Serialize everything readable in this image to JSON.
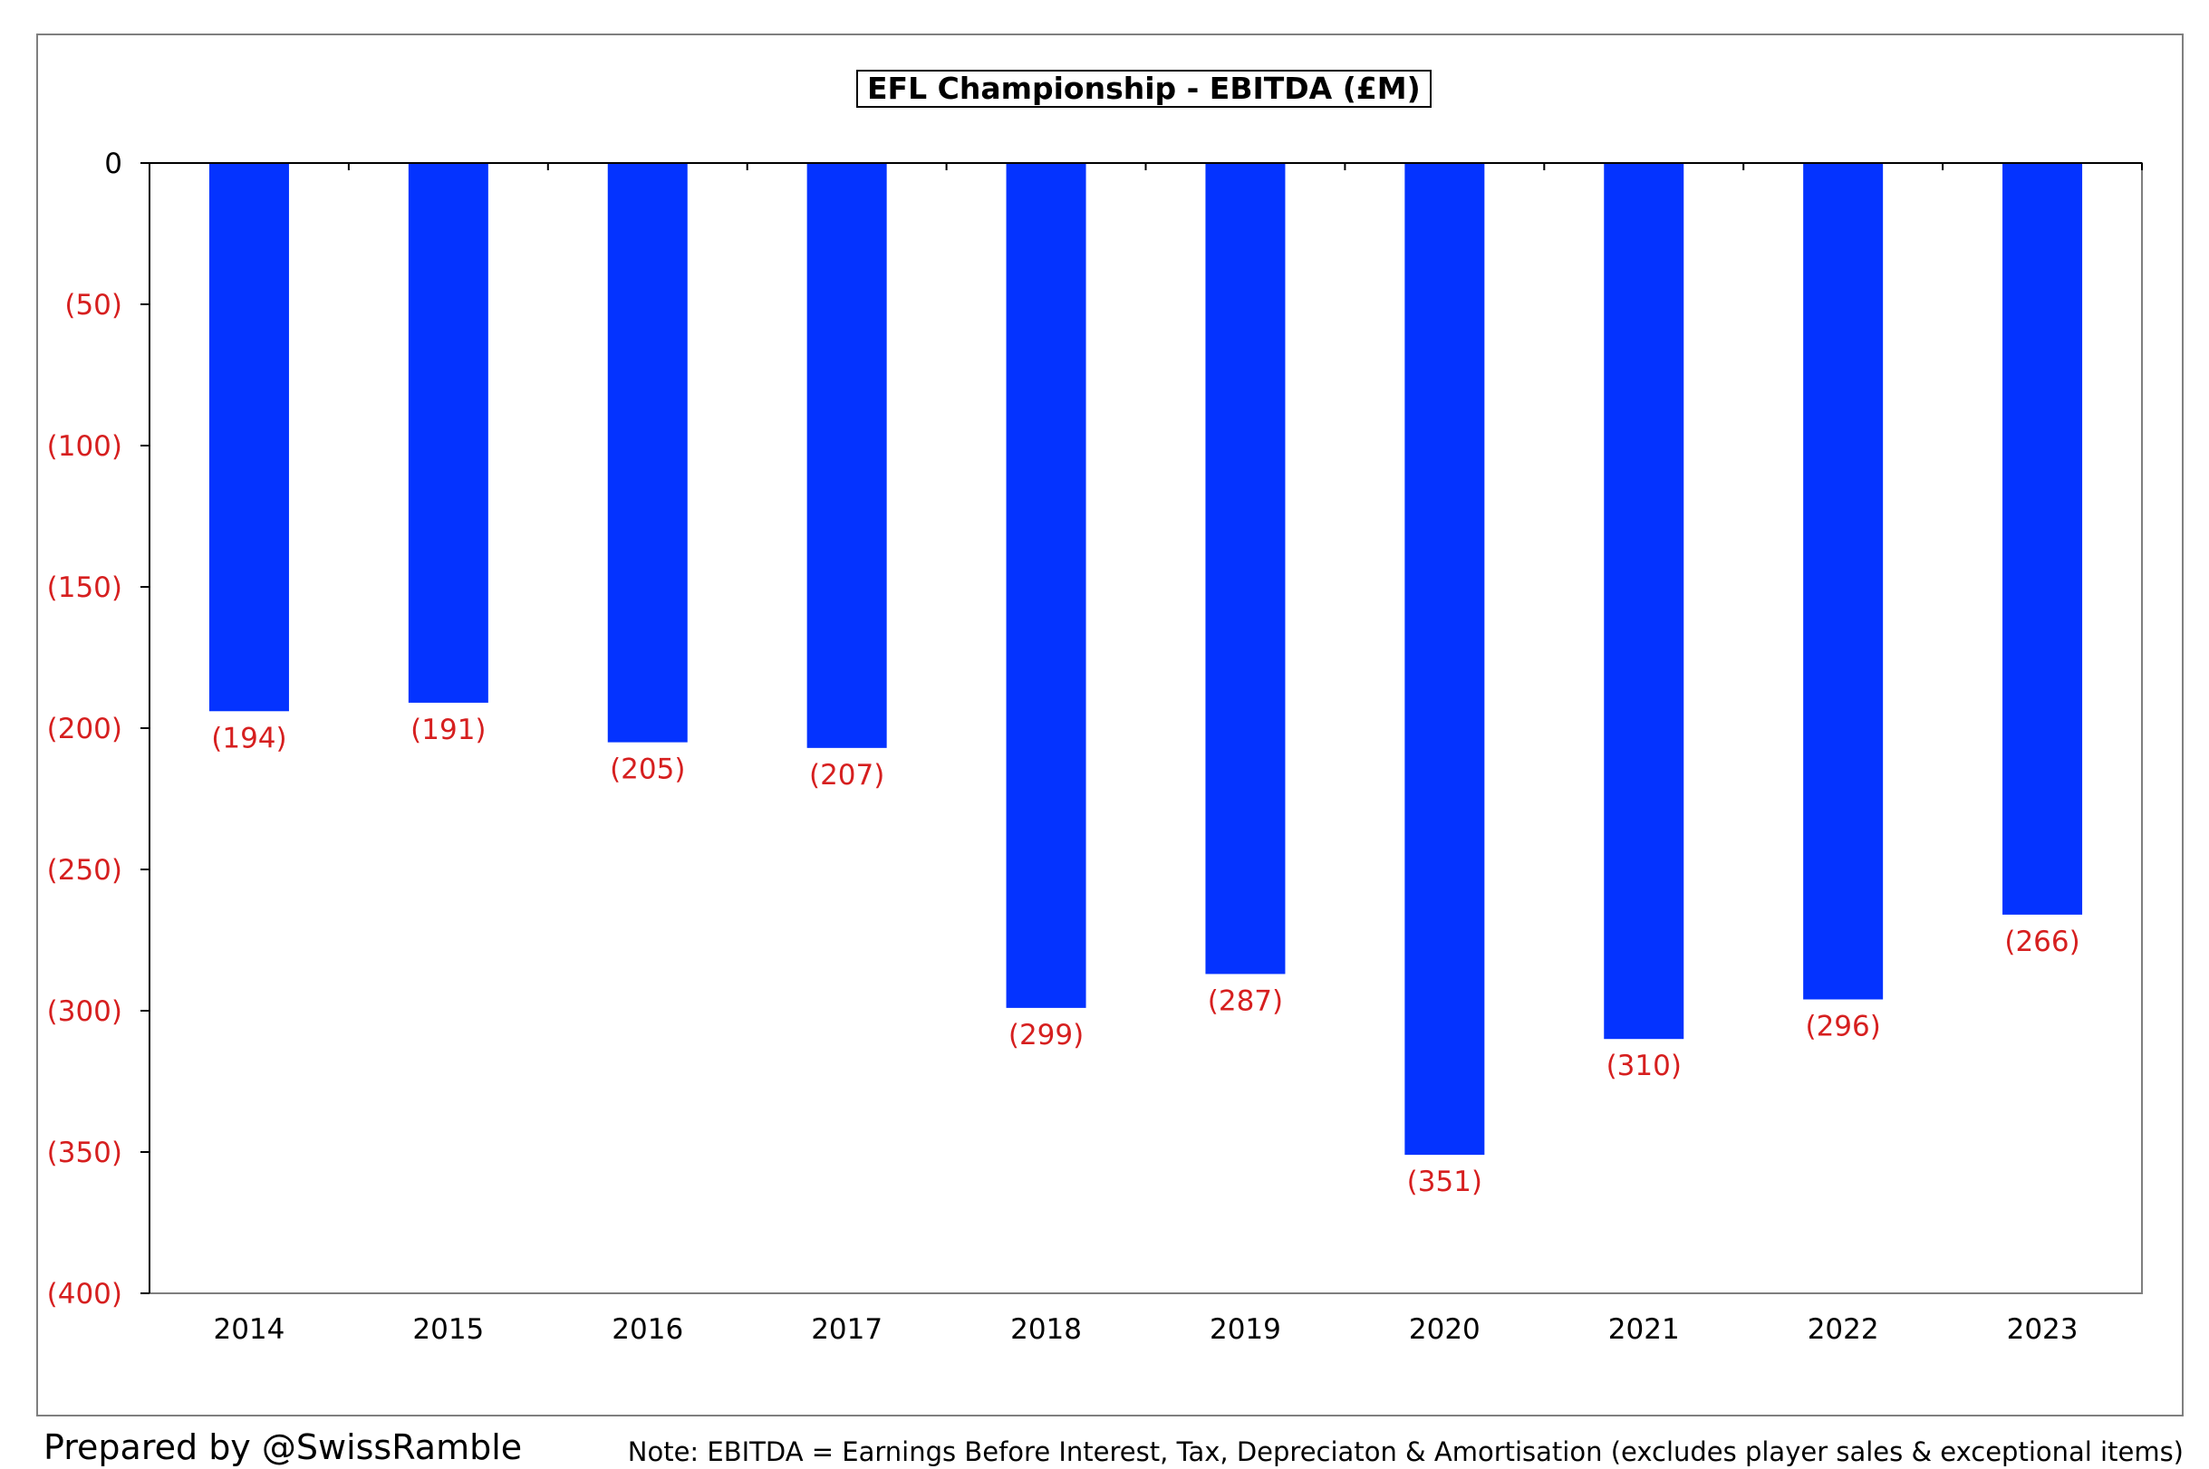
{
  "chart_data": {
    "type": "bar",
    "title": "EFL Championship - EBITDA (£M)",
    "categories": [
      "2014",
      "2015",
      "2016",
      "2017",
      "2018",
      "2019",
      "2020",
      "2021",
      "2022",
      "2023"
    ],
    "values": [
      -194,
      -191,
      -205,
      -207,
      -299,
      -287,
      -351,
      -310,
      -296,
      -266
    ],
    "data_labels": [
      "(194)",
      "(191)",
      "(205)",
      "(207)",
      "(299)",
      "(287)",
      "(351)",
      "(310)",
      "(296)",
      "(266)"
    ],
    "ylim": [
      -400,
      0
    ],
    "yticks": [
      0,
      -50,
      -100,
      -150,
      -200,
      -250,
      -300,
      -350,
      -400
    ],
    "ytick_labels": [
      "0",
      "(50)",
      "(100)",
      "(150)",
      "(200)",
      "(250)",
      "(300)",
      "(350)",
      "(400)"
    ],
    "xlabel": "",
    "ylabel": "",
    "grid": false,
    "legend": "none",
    "colors": {
      "bar": "#0433ff",
      "negative_label": "#d61f1f",
      "zero_label": "#000000"
    }
  },
  "footer": {
    "credit": "Prepared by @SwissRamble",
    "note": "Note: EBITDA = Earnings Before Interest, Tax, Depreciaton & Amortisation (excludes player sales & exceptional items)"
  }
}
